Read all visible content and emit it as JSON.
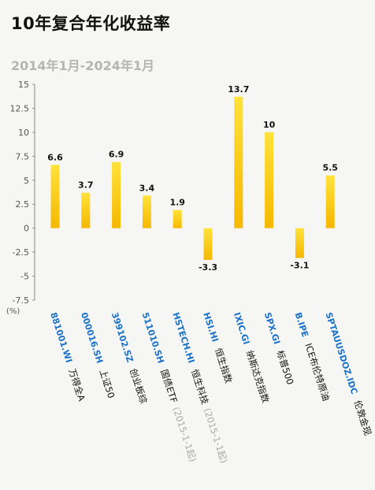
{
  "title": "10年复合年化收益率",
  "subtitle": "2014年1月-2024年1月",
  "chart_data": {
    "type": "bar",
    "title": "10年复合年化收益率",
    "subtitle": "2014年1月-2024年1月",
    "unit": "(%)",
    "ylim": [
      -7.5,
      15
    ],
    "yticks": [
      "15",
      "12.5",
      "10",
      "7.5",
      "5",
      "2.5",
      "0",
      "-2.5",
      "-5",
      "-7.5"
    ],
    "grid": false,
    "colors": {
      "bar_top": "#ffe23a",
      "bar_bottom": "#f5b800",
      "code": "#1a72c9",
      "note": "#aaaaaa"
    },
    "categories": [
      {
        "code": "881001.WI",
        "name": "万得全A",
        "note": "",
        "label": "6.6"
      },
      {
        "code": "000016.SH",
        "name": "上证50",
        "note": "",
        "label": "3.7"
      },
      {
        "code": "399102.SZ",
        "name": "创业板综",
        "note": "",
        "label": "6.9"
      },
      {
        "code": "511010.SH",
        "name": "国债ETF",
        "note": "(2015-1-1起)",
        "label": "3.4"
      },
      {
        "code": "HSTECH.HI",
        "name": "恒生科技",
        "note": "(2015-1-1起)",
        "label": "1.9"
      },
      {
        "code": "HSI.HI",
        "name": "恒生指数",
        "note": "",
        "label": "-3.3"
      },
      {
        "code": "IXIC.GI",
        "name": "纳斯达克指数",
        "note": "",
        "label": "13.7"
      },
      {
        "code": "SPX.GI",
        "name": "标普500",
        "note": "",
        "label": "10"
      },
      {
        "code": "B.IPE",
        "name": "ICE布伦特原油",
        "note": "",
        "label": "-3.1"
      },
      {
        "code": "SPTAUUSDOZ.IDC",
        "name": "伦敦金现",
        "note": "",
        "label": "5.5"
      }
    ],
    "values": [
      6.6,
      3.7,
      6.9,
      3.4,
      1.9,
      -3.3,
      13.7,
      10,
      -3.1,
      5.5
    ]
  }
}
